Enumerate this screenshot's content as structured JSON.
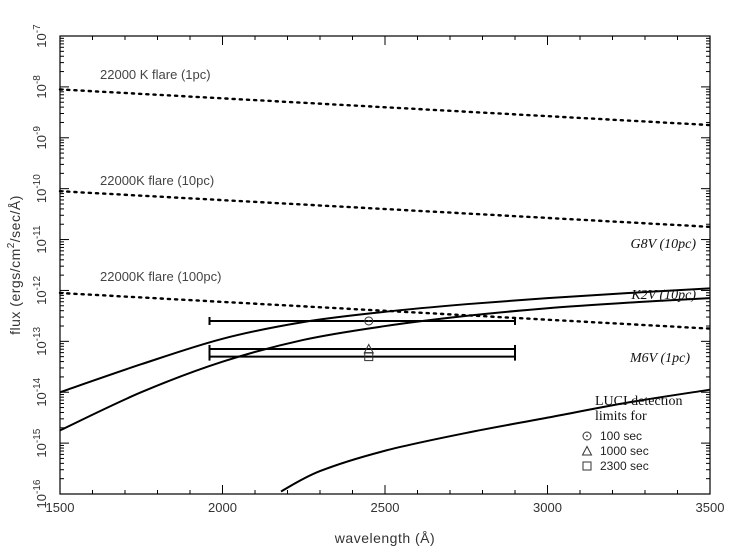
{
  "chart_data": {
    "type": "line",
    "title": "",
    "xlabel": "wavelength (Å)",
    "ylabel": "flux (ergs/cm²/sec/Å)",
    "ylabel_parts": {
      "pre": "flux (ergs/cm",
      "sup": "2",
      "post": "/sec/Å)"
    },
    "xlim": [
      1500,
      3500
    ],
    "ylim_log10": [
      -16,
      -7
    ],
    "y_scale": "log",
    "grid": false,
    "x_ticks": [
      1500,
      2000,
      2500,
      3000,
      3500
    ],
    "x_tick_labels": [
      "1500",
      "2000",
      "2500",
      "3000",
      "3500"
    ],
    "y_ticks_exp": [
      -16,
      -15,
      -14,
      -13,
      -12,
      -11,
      -10,
      -9,
      -8,
      -7
    ],
    "y_tick_base": "10",
    "flares": [
      {
        "label": "22000 K flare (1pc)",
        "x": [
          1500,
          3500
        ],
        "y_log10": [
          -8.05,
          -8.75
        ]
      },
      {
        "label": "22000K flare (10pc)",
        "x": [
          1500,
          3500
        ],
        "y_log10": [
          -10.05,
          -10.75
        ]
      },
      {
        "label": "22000K flare (100pc)",
        "x": [
          1500,
          3500
        ],
        "y_log10": [
          -12.05,
          -12.75
        ]
      }
    ],
    "stars": [
      {
        "label": "G8V (10pc)",
        "x": [
          1500,
          1750,
          2000,
          2250,
          2500,
          2750,
          3000,
          3250,
          3500
        ],
        "y_log10": [
          -14.0,
          -13.45,
          -12.95,
          -12.62,
          -12.42,
          -12.27,
          -12.15,
          -12.05,
          -11.96
        ]
      },
      {
        "label": "K2V (10pc)",
        "x": [
          1500,
          1750,
          2000,
          2250,
          2500,
          2750,
          3000,
          3250,
          3500
        ],
        "y_log10": [
          -14.75,
          -14.0,
          -13.4,
          -12.97,
          -12.7,
          -12.5,
          -12.35,
          -12.24,
          -12.15
        ]
      },
      {
        "label": "M6V (1pc)",
        "x": [
          2180,
          2300,
          2500,
          2750,
          3000,
          3250,
          3500
        ],
        "y_log10": [
          -15.95,
          -15.55,
          -15.15,
          -14.8,
          -14.5,
          -14.2,
          -13.95
        ]
      }
    ],
    "detection_limits": [
      {
        "exposure": "100 sec",
        "marker": "circle-dot",
        "x": 2450,
        "x_range": [
          1960,
          2900
        ],
        "y_log10": -12.6
      },
      {
        "exposure": "1000 sec",
        "marker": "triangle",
        "x": 2450,
        "x_range": [
          1960,
          2900
        ],
        "y_log10": -13.15
      },
      {
        "exposure": "2300 sec",
        "marker": "square",
        "x": 2450,
        "x_range": [
          1960,
          2900
        ],
        "y_log10": -13.3
      }
    ],
    "legend": {
      "title_line1": "LUCI detection",
      "title_line2": "limits for",
      "placement": "bottom-right",
      "items": [
        {
          "marker": "circle-dot",
          "label": "100 sec"
        },
        {
          "marker": "triangle",
          "label": "1000 sec"
        },
        {
          "marker": "square",
          "label": "2300 sec"
        }
      ]
    }
  }
}
